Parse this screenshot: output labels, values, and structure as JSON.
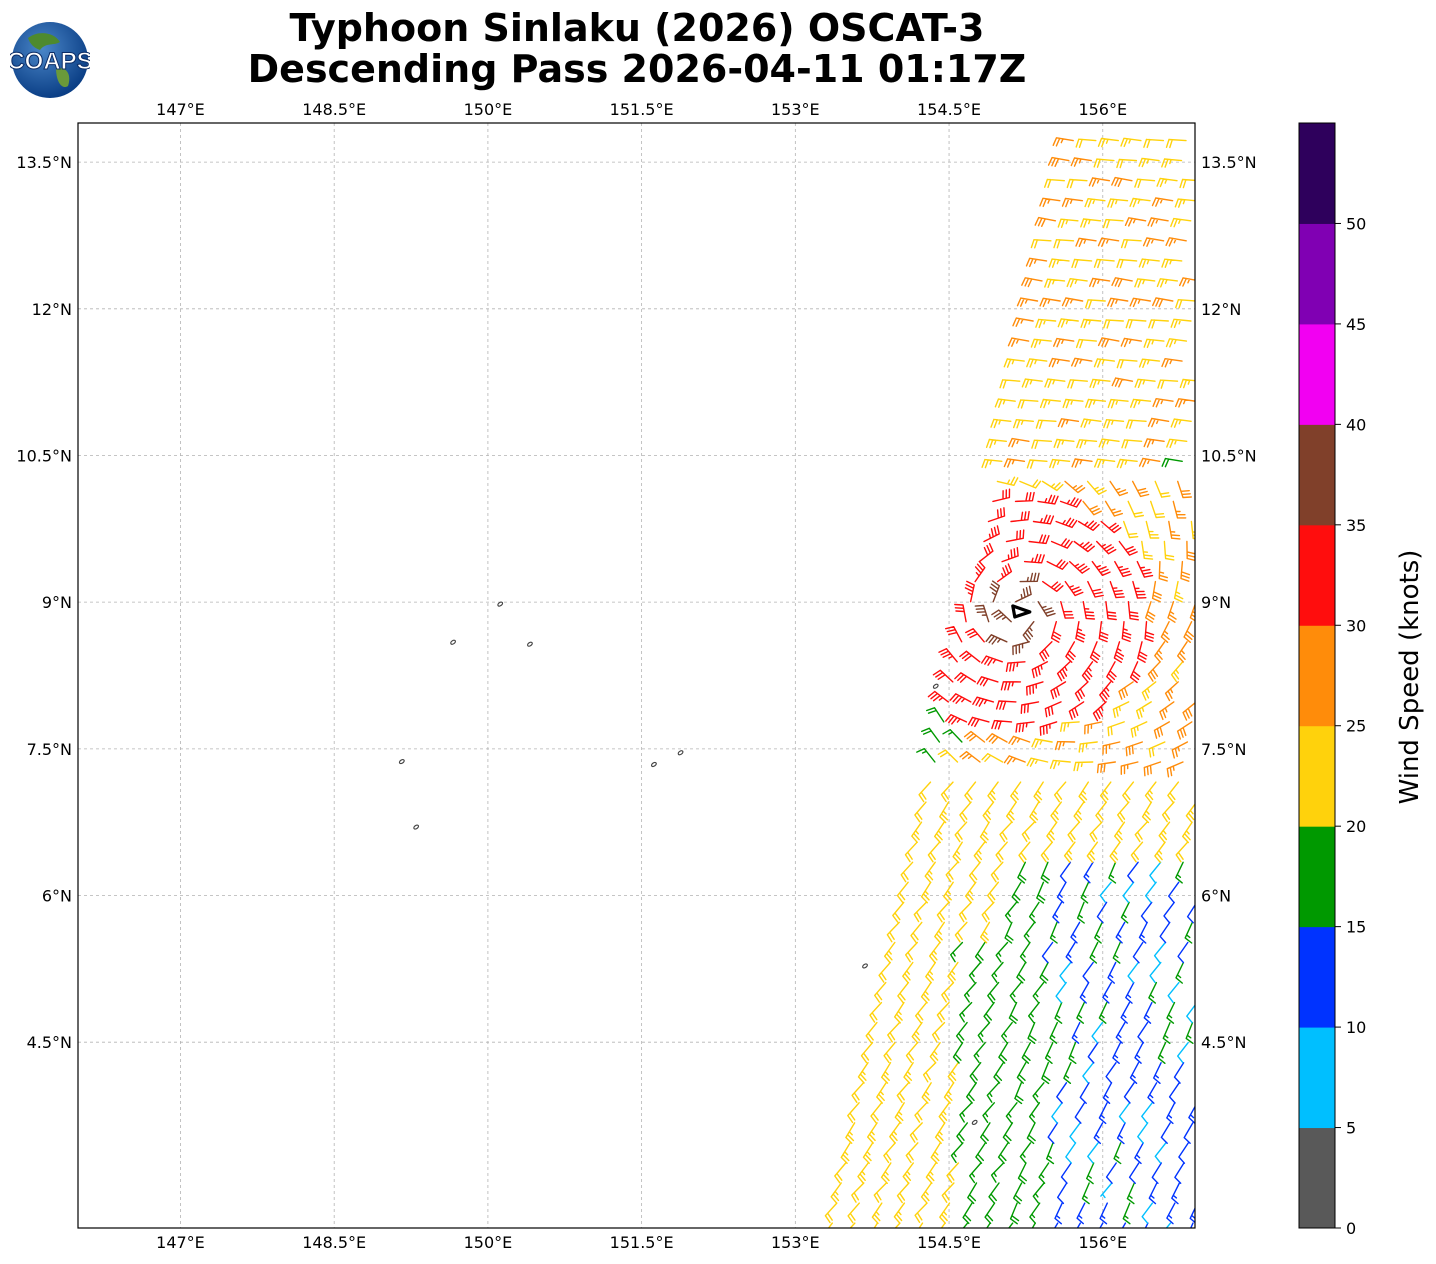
{
  "title": {
    "line1": "Typhoon Sinlaku (2026) OSCAT-3",
    "line2": "Descending Pass 2026-04-11 01:17Z"
  },
  "logo": {
    "text": "COAPS",
    "icon": "globe-logo"
  },
  "map": {
    "lon_range": [
      146.0,
      156.9
    ],
    "lat_range": [
      2.6,
      13.9
    ],
    "lon_ticks": [
      147.0,
      148.5,
      150.0,
      151.5,
      153.0,
      154.5,
      156.0
    ],
    "lon_labels": [
      "147°E",
      "148.5°E",
      "150°E",
      "151.5°E",
      "153°E",
      "154.5°E",
      "156°E"
    ],
    "lat_ticks": [
      13.5,
      12.0,
      10.5,
      9.0,
      7.5,
      6.0,
      4.5
    ],
    "lat_labels": [
      "13.5°N",
      "12°N",
      "10.5°N",
      "9°N",
      "7.5°N",
      "6°N",
      "4.5°N"
    ],
    "gridlines": true,
    "coast_color": "#444444",
    "storm_center": {
      "lon": 155.2,
      "lat": 8.9,
      "icon": "typhoon-center-symbol"
    },
    "islands": [
      {
        "lon": 150.12,
        "lat": 8.98
      },
      {
        "lon": 149.66,
        "lat": 8.59
      },
      {
        "lon": 150.41,
        "lat": 8.57
      },
      {
        "lon": 154.37,
        "lat": 8.14
      },
      {
        "lon": 151.62,
        "lat": 7.34
      },
      {
        "lon": 151.88,
        "lat": 7.46
      },
      {
        "lon": 149.16,
        "lat": 7.37
      },
      {
        "lon": 149.3,
        "lat": 6.7
      },
      {
        "lon": 153.68,
        "lat": 5.28
      },
      {
        "lon": 154.75,
        "lat": 3.68
      }
    ]
  },
  "colorbar": {
    "label": "Wind Speed (knots)",
    "ticks": [
      "0",
      "5",
      "10",
      "15",
      "20",
      "25",
      "30",
      "35",
      "40",
      "45",
      "50"
    ],
    "bins": [
      {
        "min": 0,
        "max": 5,
        "color": "#595959"
      },
      {
        "min": 5,
        "max": 10,
        "color": "#00bfff"
      },
      {
        "min": 10,
        "max": 15,
        "color": "#0033ff"
      },
      {
        "min": 15,
        "max": 20,
        "color": "#009900"
      },
      {
        "min": 20,
        "max": 25,
        "color": "#ffd20c"
      },
      {
        "min": 25,
        "max": 30,
        "color": "#ff8c0a"
      },
      {
        "min": 30,
        "max": 35,
        "color": "#ff0d0d"
      },
      {
        "min": 35,
        "max": 40,
        "color": "#80402a"
      },
      {
        "min": 40,
        "max": 45,
        "color": "#f200f2"
      },
      {
        "min": 45,
        "max": 50,
        "color": "#8000b3"
      },
      {
        "min": 50,
        "max": 55,
        "color": "#2e005c"
      }
    ]
  },
  "chart_data": {
    "type": "wind-barbs",
    "units": "knots",
    "swath": {
      "lat_min": 2.6,
      "lat_max": 13.9,
      "west_edge_lon_at_lat_min": 153.35,
      "west_edge_lon_at_lat_max": 155.75,
      "east_edge_lon": 156.9,
      "row_spacing_deg": 0.205,
      "col_spacing_deg": 0.22
    },
    "wind_field_regions": [
      {
        "region": "north of 10.5N",
        "speed_kt": [
          22,
          28
        ],
        "direction": "westerly"
      },
      {
        "region": "core near 155.2E 8.9N",
        "speed_kt": [
          30,
          34
        ],
        "direction": "cyclonic"
      },
      {
        "region": "southeast quadrant",
        "speed_kt": [
          8,
          18
        ],
        "direction": "southwesterly"
      },
      {
        "region": "southwest edge",
        "speed_kt": [
          20,
          24
        ],
        "direction": "southwesterly"
      }
    ]
  }
}
